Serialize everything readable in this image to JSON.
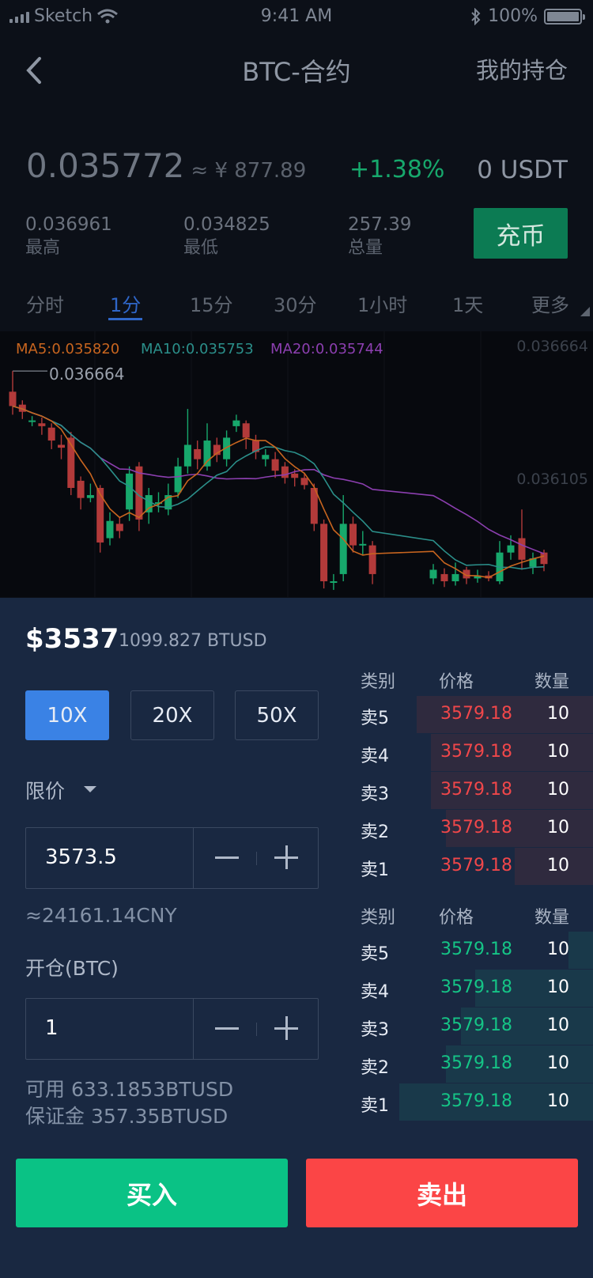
{
  "status": {
    "carrier": "Sketch",
    "time": "9:41 AM",
    "battery": "100%",
    "signal_icon": "signal-icon",
    "wifi_icon": "wifi-icon",
    "bluetooth_icon": "bluetooth-icon",
    "battery_level": 1.0
  },
  "nav": {
    "title": "BTC-合约",
    "positions_link": "我的持仓"
  },
  "ticker": {
    "last_price": "0.035772",
    "cny_price": "≈ ¥ 877.89",
    "change": "+1.38%",
    "balance": "0 USDT",
    "high_value": "0.036961",
    "high_label": "最高",
    "low_value": "0.034825",
    "low_label": "最低",
    "volume_value": "257.39",
    "volume_label": "总量",
    "recharge_button": "充币"
  },
  "tabs": [
    "分时",
    "1分",
    "15分",
    "30分",
    "1小时",
    "1天",
    "更多"
  ],
  "chart": {
    "ma5": "MA5:0.035820",
    "ma10": "MA10:0.035753",
    "ma20": "MA20:0.035744",
    "axis_top": "0.036664",
    "axis_mid": "0.036105",
    "high_marker": "0.036664",
    "colors": {
      "up": "#17a86c",
      "down": "#b23a3a",
      "ma5": "#c8651f",
      "ma10": "#2b8f8a",
      "ma20": "#8c3fb0"
    }
  },
  "chart_data": {
    "type": "candlestick",
    "ylim": [
      0.0352,
      0.03672
    ],
    "series_labels": [
      "MA5:0.035820",
      "MA10:0.035753",
      "MA20:0.035744"
    ],
    "candles": [
      {
        "o": 0.03652,
        "c": 0.03642,
        "h": 0.036664,
        "l": 0.03636
      },
      {
        "o": 0.03643,
        "c": 0.03638,
        "h": 0.03646,
        "l": 0.03633
      },
      {
        "o": 0.03632,
        "c": 0.03632,
        "h": 0.03635,
        "l": 0.03628
      },
      {
        "o": 0.0363,
        "c": 0.03628,
        "h": 0.03634,
        "l": 0.03622
      },
      {
        "o": 0.03627,
        "c": 0.03618,
        "h": 0.0363,
        "l": 0.03612
      },
      {
        "o": 0.03615,
        "c": 0.03613,
        "h": 0.03622,
        "l": 0.03605
      },
      {
        "o": 0.0362,
        "c": 0.03585,
        "h": 0.03624,
        "l": 0.0358
      },
      {
        "o": 0.0359,
        "c": 0.03578,
        "h": 0.03593,
        "l": 0.0357
      },
      {
        "o": 0.03578,
        "c": 0.0358,
        "h": 0.03588,
        "l": 0.03575
      },
      {
        "o": 0.03585,
        "c": 0.03547,
        "h": 0.03587,
        "l": 0.0354
      },
      {
        "o": 0.0355,
        "c": 0.03562,
        "h": 0.03568,
        "l": 0.03545
      },
      {
        "o": 0.0356,
        "c": 0.03555,
        "h": 0.03565,
        "l": 0.0355
      },
      {
        "o": 0.0357,
        "c": 0.03595,
        "h": 0.036,
        "l": 0.03562
      },
      {
        "o": 0.036,
        "c": 0.03563,
        "h": 0.03603,
        "l": 0.03555
      },
      {
        "o": 0.03568,
        "c": 0.0358,
        "h": 0.03585,
        "l": 0.0356
      },
      {
        "o": 0.03575,
        "c": 0.03575,
        "h": 0.03582,
        "l": 0.03568
      },
      {
        "o": 0.0357,
        "c": 0.0358,
        "h": 0.03588,
        "l": 0.03566
      },
      {
        "o": 0.03582,
        "c": 0.036,
        "h": 0.03606,
        "l": 0.03578
      },
      {
        "o": 0.036,
        "c": 0.03615,
        "h": 0.0364,
        "l": 0.03595
      },
      {
        "o": 0.03612,
        "c": 0.03605,
        "h": 0.03618,
        "l": 0.03598
      },
      {
        "o": 0.036,
        "c": 0.03618,
        "h": 0.0363,
        "l": 0.03597
      },
      {
        "o": 0.03615,
        "c": 0.03608,
        "h": 0.0362,
        "l": 0.03603
      },
      {
        "o": 0.03605,
        "c": 0.0362,
        "h": 0.03625,
        "l": 0.036
      },
      {
        "o": 0.03628,
        "c": 0.03632,
        "h": 0.03636,
        "l": 0.03624
      },
      {
        "o": 0.0363,
        "c": 0.0362,
        "h": 0.03632,
        "l": 0.03612
      },
      {
        "o": 0.03618,
        "c": 0.0361,
        "h": 0.03622,
        "l": 0.03605
      },
      {
        "o": 0.03605,
        "c": 0.03608,
        "h": 0.03612,
        "l": 0.036
      },
      {
        "o": 0.03605,
        "c": 0.03597,
        "h": 0.0361,
        "l": 0.03592
      },
      {
        "o": 0.036,
        "c": 0.03592,
        "h": 0.03603,
        "l": 0.03588
      },
      {
        "o": 0.03595,
        "c": 0.03592,
        "h": 0.03598,
        "l": 0.03586
      },
      {
        "o": 0.03592,
        "c": 0.03587,
        "h": 0.03595,
        "l": 0.03584
      },
      {
        "o": 0.03585,
        "c": 0.0356,
        "h": 0.03588,
        "l": 0.03555
      },
      {
        "o": 0.0356,
        "c": 0.0352,
        "h": 0.03563,
        "l": 0.03515
      },
      {
        "o": 0.0352,
        "c": 0.0352,
        "h": 0.03525,
        "l": 0.03514
      },
      {
        "o": 0.03525,
        "c": 0.0356,
        "h": 0.0358,
        "l": 0.0352
      },
      {
        "o": 0.0356,
        "c": 0.03545,
        "h": 0.03565,
        "l": 0.0354
      },
      {
        "o": 0.03545,
        "c": 0.03546,
        "h": 0.03555,
        "l": 0.03538
      },
      {
        "o": 0.03545,
        "c": 0.03525,
        "h": 0.03548,
        "l": 0.03518
      }
    ],
    "candles_right": [
      {
        "o": 0.03522,
        "c": 0.03528,
        "h": 0.03532,
        "l": 0.03518
      },
      {
        "o": 0.03525,
        "c": 0.0352,
        "h": 0.03529,
        "l": 0.03516
      },
      {
        "o": 0.0352,
        "c": 0.03525,
        "h": 0.03533,
        "l": 0.03517
      },
      {
        "o": 0.03528,
        "c": 0.03522,
        "h": 0.0353,
        "l": 0.03518
      },
      {
        "o": 0.03522,
        "c": 0.03524,
        "h": 0.03528,
        "l": 0.03519
      },
      {
        "o": 0.03524,
        "c": 0.03522,
        "h": 0.03527,
        "l": 0.0352
      },
      {
        "o": 0.0352,
        "c": 0.0354,
        "h": 0.03548,
        "l": 0.03518
      },
      {
        "o": 0.0354,
        "c": 0.03545,
        "h": 0.03552,
        "l": 0.03535
      },
      {
        "o": 0.0355,
        "c": 0.03535,
        "h": 0.0357,
        "l": 0.03528
      },
      {
        "o": 0.0353,
        "c": 0.03536,
        "h": 0.0354,
        "l": 0.03525
      },
      {
        "o": 0.0354,
        "c": 0.03532,
        "h": 0.03542,
        "l": 0.03527
      }
    ]
  },
  "trade": {
    "price_usd": "$3537",
    "price_btusd": "1099.827 BTUSD",
    "leverage": [
      "10X",
      "20X",
      "50X"
    ],
    "order_type": "限价",
    "limit_price": "3573.5",
    "cny_equiv": "≈24161.14CNY",
    "open_label": "开仓(BTC)",
    "amount": "1",
    "available": "可用 633.1853BTUSD",
    "margin": "保证金 357.35BTUSD",
    "buy_button": "买入",
    "sell_button": "卖出"
  },
  "orderbook": {
    "headers": [
      "类别",
      "价格",
      "数量"
    ],
    "asks": [
      {
        "type": "卖5",
        "price": "3579.18",
        "qty": "10",
        "depth": 0.72
      },
      {
        "type": "卖4",
        "price": "3579.18",
        "qty": "10",
        "depth": 0.66
      },
      {
        "type": "卖3",
        "price": "3579.18",
        "qty": "10",
        "depth": 0.66
      },
      {
        "type": "卖2",
        "price": "3579.18",
        "qty": "10",
        "depth": 0.6
      },
      {
        "type": "卖1",
        "price": "3579.18",
        "qty": "10",
        "depth": 0.32
      }
    ],
    "bids": [
      {
        "type": "卖5",
        "price": "3579.18",
        "qty": "10",
        "depth": 0.1
      },
      {
        "type": "卖4",
        "price": "3579.18",
        "qty": "10",
        "depth": 0.48
      },
      {
        "type": "卖3",
        "price": "3579.18",
        "qty": "10",
        "depth": 0.54
      },
      {
        "type": "卖2",
        "price": "3579.18",
        "qty": "10",
        "depth": 0.6
      },
      {
        "type": "卖1",
        "price": "3579.18",
        "qty": "10",
        "depth": 0.79
      }
    ],
    "colors": {
      "ask": "#f0474a",
      "bid": "#15c486",
      "ask_bg": "#2f2a3e",
      "bid_bg": "#19394a"
    }
  }
}
